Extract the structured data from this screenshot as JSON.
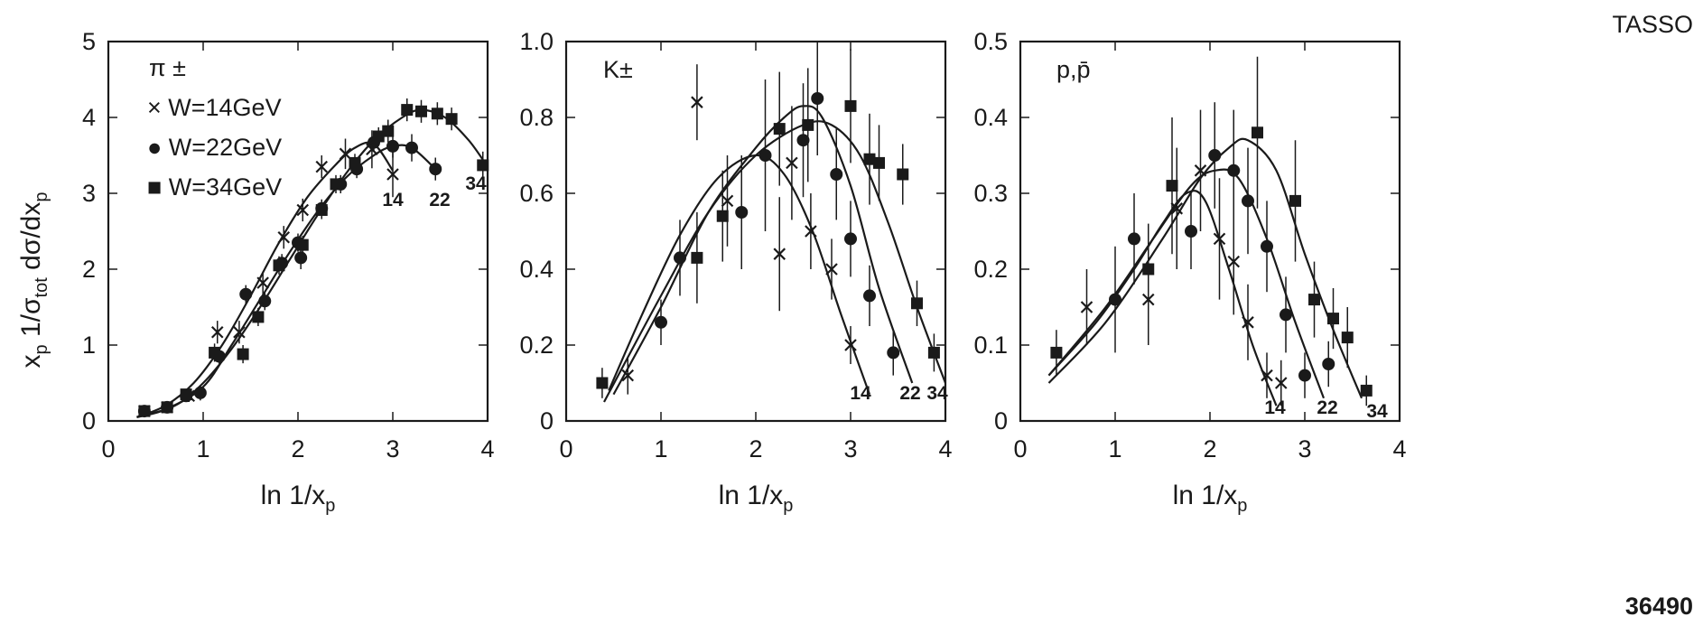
{
  "figure": {
    "label_top": "TASSO",
    "label_bottom": "36490",
    "ylabel_parts": [
      "x",
      "p",
      " 1/σ",
      "tot",
      "   dσ/dx",
      "p"
    ],
    "xlabel_parts": [
      "ln 1/x",
      "p"
    ]
  },
  "chart_data": [
    {
      "type": "scatter",
      "panel_label": "π ±",
      "xlim": [
        0,
        4
      ],
      "ylim": [
        0,
        5
      ],
      "xticks": [
        "0",
        "1",
        "2",
        "3",
        "4"
      ],
      "yticks": [
        "0",
        "1",
        "2",
        "3",
        "4",
        "5"
      ],
      "legend": [
        "× W=14GeV",
        "● W=22GeV",
        "■ W=34GeV"
      ],
      "curve_labels": [
        "14",
        "22",
        "34"
      ],
      "series": [
        {
          "name": "W=14GeV",
          "marker": "cross",
          "points": [
            [
              0.38,
              0.13,
              0.05
            ],
            [
              0.62,
              0.18,
              0.05
            ],
            [
              0.85,
              0.33,
              0.08
            ],
            [
              1.15,
              1.17,
              0.15
            ],
            [
              1.38,
              1.17,
              0.15
            ],
            [
              1.63,
              1.82,
              0.15
            ],
            [
              1.85,
              2.42,
              0.15
            ],
            [
              2.05,
              2.78,
              0.15
            ],
            [
              2.25,
              3.35,
              0.15
            ],
            [
              2.5,
              3.52,
              0.2
            ],
            [
              2.78,
              3.58,
              0.25
            ],
            [
              3.0,
              3.25,
              0.3
            ]
          ],
          "fit": [
            [
              0.3,
              0.05
            ],
            [
              0.6,
              0.2
            ],
            [
              0.9,
              0.5
            ],
            [
              1.2,
              1.0
            ],
            [
              1.5,
              1.65
            ],
            [
              1.8,
              2.35
            ],
            [
              2.1,
              2.95
            ],
            [
              2.4,
              3.38
            ],
            [
              2.6,
              3.6
            ],
            [
              2.8,
              3.65
            ],
            [
              3.0,
              3.3
            ]
          ]
        },
        {
          "name": "W=22GeV",
          "marker": "circle",
          "points": [
            [
              0.38,
              0.13,
              0.05
            ],
            [
              0.62,
              0.18,
              0.05
            ],
            [
              0.82,
              0.33,
              0.07
            ],
            [
              0.97,
              0.37,
              0.1
            ],
            [
              1.17,
              0.85,
              0.12
            ],
            [
              1.45,
              1.67,
              0.12
            ],
            [
              1.65,
              1.58,
              0.12
            ],
            [
              1.83,
              2.08,
              0.12
            ],
            [
              2.0,
              2.35,
              0.12
            ],
            [
              2.03,
              2.15,
              0.15
            ],
            [
              2.25,
              2.8,
              0.12
            ],
            [
              2.45,
              3.12,
              0.12
            ],
            [
              2.62,
              3.32,
              0.12
            ],
            [
              2.8,
              3.67,
              0.12
            ],
            [
              3.0,
              3.62,
              0.15
            ],
            [
              3.2,
              3.6,
              0.18
            ],
            [
              3.45,
              3.32,
              0.15
            ]
          ],
          "fit": [
            [
              0.3,
              0.05
            ],
            [
              0.6,
              0.15
            ],
            [
              1.0,
              0.45
            ],
            [
              1.3,
              1.0
            ],
            [
              1.6,
              1.6
            ],
            [
              1.9,
              2.2
            ],
            [
              2.2,
              2.75
            ],
            [
              2.5,
              3.2
            ],
            [
              2.8,
              3.5
            ],
            [
              3.0,
              3.62
            ],
            [
              3.2,
              3.6
            ],
            [
              3.45,
              3.32
            ]
          ]
        },
        {
          "name": "W=34GeV",
          "marker": "square",
          "points": [
            [
              0.38,
              0.13,
              0.05
            ],
            [
              0.62,
              0.18,
              0.05
            ],
            [
              0.82,
              0.35,
              0.07
            ],
            [
              1.12,
              0.9,
              0.12
            ],
            [
              1.42,
              0.88,
              0.12
            ],
            [
              1.58,
              1.37,
              0.12
            ],
            [
              1.8,
              2.05,
              0.12
            ],
            [
              2.05,
              2.32,
              0.12
            ],
            [
              2.25,
              2.78,
              0.12
            ],
            [
              2.4,
              3.12,
              0.12
            ],
            [
              2.6,
              3.4,
              0.12
            ],
            [
              2.85,
              3.75,
              0.12
            ],
            [
              2.95,
              3.82,
              0.15
            ],
            [
              3.15,
              4.1,
              0.15
            ],
            [
              3.3,
              4.08,
              0.15
            ],
            [
              3.47,
              4.05,
              0.15
            ],
            [
              3.62,
              3.98,
              0.15
            ],
            [
              3.95,
              3.37,
              0.18
            ]
          ],
          "fit": [
            [
              0.3,
              0.05
            ],
            [
              0.7,
              0.2
            ],
            [
              1.0,
              0.5
            ],
            [
              1.3,
              0.95
            ],
            [
              1.6,
              1.5
            ],
            [
              1.9,
              2.1
            ],
            [
              2.2,
              2.7
            ],
            [
              2.5,
              3.25
            ],
            [
              2.8,
              3.7
            ],
            [
              3.1,
              4.0
            ],
            [
              3.3,
              4.1
            ],
            [
              3.55,
              4.0
            ],
            [
              3.8,
              3.7
            ],
            [
              4.0,
              3.35
            ]
          ]
        }
      ]
    },
    {
      "type": "scatter",
      "panel_label": "K±",
      "xlim": [
        0,
        4
      ],
      "ylim": [
        0,
        1.0
      ],
      "xticks": [
        "0",
        "1",
        "2",
        "3",
        "4"
      ],
      "yticks": [
        "0",
        "0.2",
        "0.4",
        "0.6",
        "0.8",
        "1.0"
      ],
      "curve_labels": [
        "14",
        "22",
        "34"
      ],
      "series": [
        {
          "name": "W=14GeV",
          "marker": "cross",
          "points": [
            [
              0.65,
              0.12,
              0.05
            ],
            [
              1.38,
              0.84,
              0.1
            ],
            [
              1.7,
              0.58,
              0.12
            ],
            [
              2.25,
              0.44,
              0.15
            ],
            [
              2.38,
              0.68,
              0.15
            ],
            [
              2.58,
              0.5,
              0.1
            ],
            [
              2.8,
              0.4,
              0.08
            ],
            [
              3.0,
              0.2,
              0.05
            ]
          ],
          "fit": [
            [
              0.45,
              0.08
            ],
            [
              0.8,
              0.28
            ],
            [
              1.2,
              0.49
            ],
            [
              1.6,
              0.64
            ],
            [
              2.0,
              0.7
            ],
            [
              2.3,
              0.65
            ],
            [
              2.6,
              0.5
            ],
            [
              2.9,
              0.28
            ],
            [
              3.2,
              0.07
            ]
          ]
        },
        {
          "name": "W=22GeV",
          "marker": "circle",
          "points": [
            [
              1.0,
              0.26,
              0.06
            ],
            [
              1.2,
              0.43,
              0.1
            ],
            [
              1.85,
              0.55,
              0.15
            ],
            [
              2.1,
              0.7,
              0.2
            ],
            [
              2.5,
              0.74,
              0.15
            ],
            [
              2.65,
              0.85,
              0.15
            ],
            [
              2.85,
              0.65,
              0.12
            ],
            [
              3.0,
              0.48,
              0.1
            ],
            [
              3.2,
              0.33,
              0.08
            ],
            [
              3.45,
              0.18,
              0.06
            ]
          ],
          "fit": [
            [
              0.5,
              0.07
            ],
            [
              1.0,
              0.3
            ],
            [
              1.5,
              0.55
            ],
            [
              2.0,
              0.72
            ],
            [
              2.3,
              0.8
            ],
            [
              2.5,
              0.83
            ],
            [
              2.7,
              0.8
            ],
            [
              3.0,
              0.62
            ],
            [
              3.3,
              0.35
            ],
            [
              3.65,
              0.1
            ]
          ]
        },
        {
          "name": "W=34GeV",
          "marker": "square",
          "points": [
            [
              0.38,
              0.1,
              0.04
            ],
            [
              1.38,
              0.43,
              0.12
            ],
            [
              1.65,
              0.54,
              0.12
            ],
            [
              2.25,
              0.77,
              0.15
            ],
            [
              2.55,
              0.78,
              0.15
            ],
            [
              3.0,
              0.83,
              0.15
            ],
            [
              3.2,
              0.69,
              0.12
            ],
            [
              3.3,
              0.68,
              0.1
            ],
            [
              3.55,
              0.65,
              0.08
            ],
            [
              3.7,
              0.31,
              0.06
            ],
            [
              3.88,
              0.18,
              0.05
            ]
          ],
          "fit": [
            [
              0.4,
              0.05
            ],
            [
              1.0,
              0.33
            ],
            [
              1.5,
              0.55
            ],
            [
              2.0,
              0.7
            ],
            [
              2.5,
              0.78
            ],
            [
              2.8,
              0.78
            ],
            [
              3.1,
              0.7
            ],
            [
              3.4,
              0.52
            ],
            [
              3.7,
              0.3
            ],
            [
              4.0,
              0.1
            ]
          ]
        }
      ]
    },
    {
      "type": "scatter",
      "panel_label": "p,p̄",
      "xlim": [
        0,
        4
      ],
      "ylim": [
        0,
        0.5
      ],
      "xticks": [
        "0",
        "1",
        "2",
        "3",
        "4"
      ],
      "yticks": [
        "0",
        "0.1",
        "0.2",
        "0.3",
        "0.4",
        "0.5"
      ],
      "curve_labels": [
        "14",
        "22",
        "34"
      ],
      "series": [
        {
          "name": "W=14GeV",
          "marker": "cross",
          "points": [
            [
              0.7,
              0.15,
              0.05
            ],
            [
              1.35,
              0.16,
              0.06
            ],
            [
              1.65,
              0.28,
              0.08
            ],
            [
              1.9,
              0.33,
              0.08
            ],
            [
              2.1,
              0.24,
              0.08
            ],
            [
              2.25,
              0.21,
              0.07
            ],
            [
              2.4,
              0.13,
              0.05
            ],
            [
              2.6,
              0.06,
              0.03
            ],
            [
              2.75,
              0.05,
              0.03
            ]
          ],
          "fit": [
            [
              0.3,
              0.06
            ],
            [
              0.8,
              0.13
            ],
            [
              1.2,
              0.2
            ],
            [
              1.5,
              0.26
            ],
            [
              1.75,
              0.3
            ],
            [
              1.95,
              0.29
            ],
            [
              2.2,
              0.2
            ],
            [
              2.45,
              0.1
            ],
            [
              2.7,
              0.02
            ]
          ]
        },
        {
          "name": "W=22GeV",
          "marker": "circle",
          "points": [
            [
              1.0,
              0.16,
              0.07
            ],
            [
              1.2,
              0.24,
              0.06
            ],
            [
              1.8,
              0.25,
              0.05
            ],
            [
              2.05,
              0.35,
              0.07
            ],
            [
              2.25,
              0.33,
              0.08
            ],
            [
              2.4,
              0.29,
              0.07
            ],
            [
              2.6,
              0.23,
              0.06
            ],
            [
              2.8,
              0.14,
              0.05
            ],
            [
              3.0,
              0.06,
              0.03
            ],
            [
              3.25,
              0.075,
              0.03
            ]
          ],
          "fit": [
            [
              0.3,
              0.06
            ],
            [
              0.9,
              0.15
            ],
            [
              1.4,
              0.24
            ],
            [
              1.8,
              0.31
            ],
            [
              2.05,
              0.33
            ],
            [
              2.3,
              0.32
            ],
            [
              2.6,
              0.24
            ],
            [
              2.9,
              0.13
            ],
            [
              3.2,
              0.03
            ]
          ]
        },
        {
          "name": "W=34GeV",
          "marker": "square",
          "points": [
            [
              0.38,
              0.09,
              0.03
            ],
            [
              1.35,
              0.2,
              0.06
            ],
            [
              1.6,
              0.31,
              0.09
            ],
            [
              2.5,
              0.38,
              0.1
            ],
            [
              2.9,
              0.29,
              0.08
            ],
            [
              3.1,
              0.16,
              0.05
            ],
            [
              3.3,
              0.135,
              0.04
            ],
            [
              3.45,
              0.11,
              0.04
            ],
            [
              3.65,
              0.04,
              0.02
            ]
          ],
          "fit": [
            [
              0.3,
              0.05
            ],
            [
              0.9,
              0.13
            ],
            [
              1.5,
              0.24
            ],
            [
              1.9,
              0.32
            ],
            [
              2.2,
              0.36
            ],
            [
              2.4,
              0.37
            ],
            [
              2.7,
              0.33
            ],
            [
              3.0,
              0.22
            ],
            [
              3.3,
              0.12
            ],
            [
              3.6,
              0.03
            ]
          ]
        }
      ]
    }
  ]
}
